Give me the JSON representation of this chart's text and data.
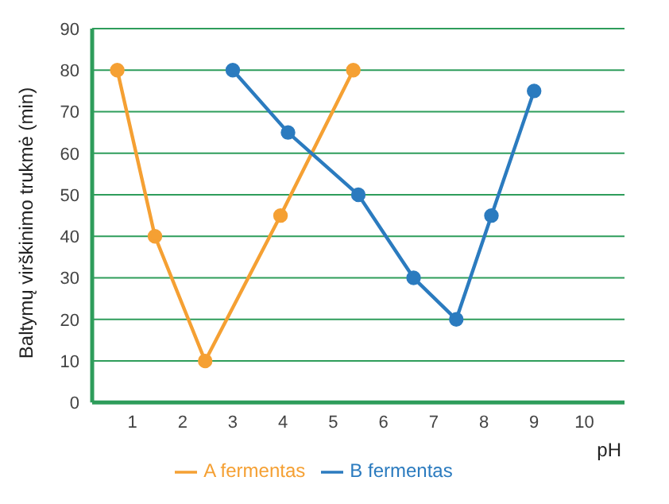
{
  "chart_data": {
    "type": "line",
    "xlabel": "pH",
    "ylabel": "Baltymų virškinimo trukmė (min)",
    "xlim": [
      0.2,
      10.8
    ],
    "xticks": [
      1,
      2,
      3,
      4,
      5,
      6,
      7,
      8,
      9,
      10
    ],
    "ylim": [
      0,
      90
    ],
    "yticks": [
      0,
      10,
      20,
      30,
      40,
      50,
      60,
      70,
      80,
      90
    ],
    "grid": "y",
    "legend": "bottom",
    "marker": "circle",
    "line_style": "solid",
    "series": [
      {
        "name": "A fermentas",
        "color": "#f5a033",
        "x": [
          0.7,
          1.45,
          2.45,
          3.95,
          5.4
        ],
        "values": [
          80,
          40,
          10,
          45,
          80
        ]
      },
      {
        "name": "B fermentas",
        "color": "#2b7bbf",
        "x": [
          3.0,
          4.1,
          5.5,
          6.6,
          7.45,
          8.15,
          9.0
        ],
        "values": [
          80,
          65,
          50,
          30,
          20,
          45,
          75
        ]
      }
    ]
  }
}
